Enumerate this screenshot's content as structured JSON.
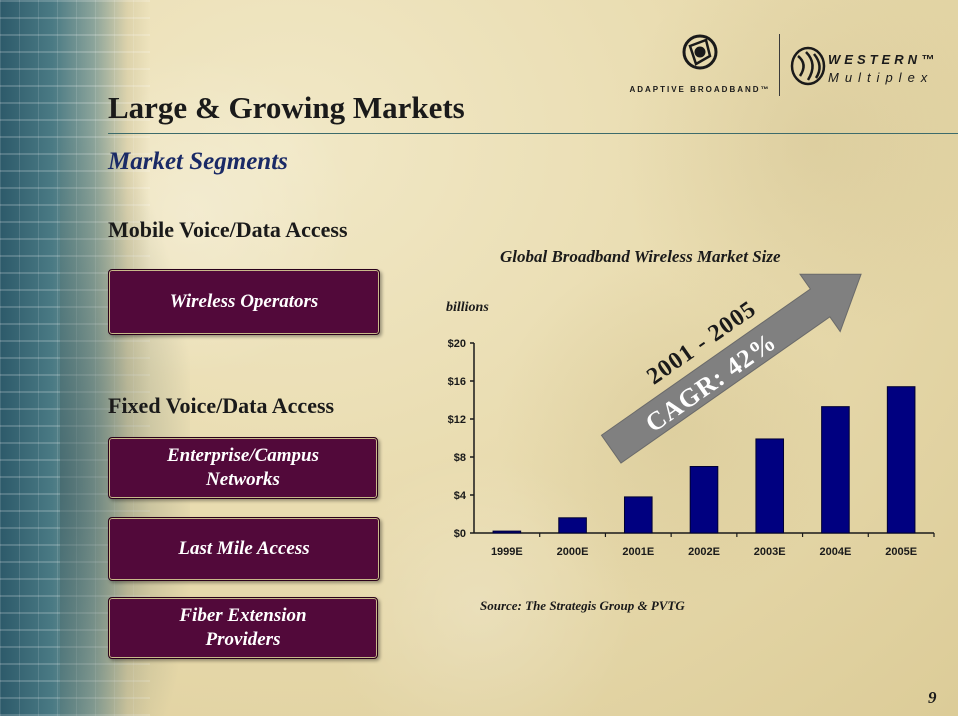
{
  "header": {
    "title": "Large & Growing Markets",
    "subtitle": "Market Segments"
  },
  "logos": {
    "adaptive_text": "ADAPTIVE BROADBAND™",
    "western_line1": "WESTERN™",
    "western_line2": "Multiplex"
  },
  "segments": {
    "mobile_heading": "Mobile Voice/Data Access",
    "mobile_items": [
      "Wireless Operators"
    ],
    "fixed_heading": "Fixed Voice/Data Access",
    "fixed_items": [
      "Enterprise/Campus Networks",
      "Last Mile Access",
      "Fiber Extension Providers"
    ]
  },
  "chart_data": {
    "type": "bar",
    "title": "Global Broadband Wireless Market Size",
    "unit_label": "billions",
    "categories": [
      "1999E",
      "2000E",
      "2001E",
      "2002E",
      "2003E",
      "2004E",
      "2005E"
    ],
    "values": [
      0.2,
      1.6,
      3.8,
      7.0,
      9.9,
      13.3,
      15.4
    ],
    "ylim": [
      0,
      20
    ],
    "yticks": [
      "$0",
      "$4",
      "$8",
      "$12",
      "$16",
      "$20"
    ],
    "ytick_values": [
      0,
      4,
      8,
      12,
      16,
      20
    ],
    "bar_color": "#000080",
    "annotation_line1": "2001 - 2005",
    "annotation_line2": "CAGR: 42%",
    "source": "Source: The Strategis Group & PVTG"
  },
  "footer": {
    "page_number": "9"
  },
  "colors": {
    "segment_box": "#52093a",
    "subtitle": "#1a2a66",
    "arrow": "#808080"
  }
}
